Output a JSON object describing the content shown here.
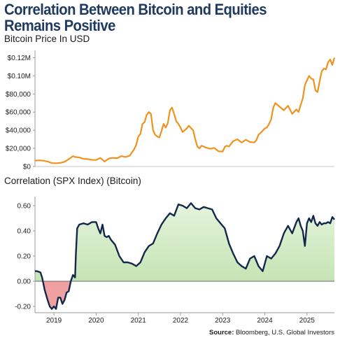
{
  "title": "Correlation Between Bitcoin and Equities Remains Positive",
  "source_label": "Source:",
  "source_text": " Bloomberg, U.S. Global Investors",
  "colors": {
    "bitcoin_line": "#f0921e",
    "correlation_line": "#13294b",
    "positive_fill": "#b9dea5",
    "negative_fill": "#f0a0a0",
    "title": "#1f3a5f"
  },
  "chart_data": [
    {
      "type": "line",
      "title": "Bitcoin Price In USD",
      "xlabel": "",
      "ylabel": "",
      "ylim": [
        0,
        125000
      ],
      "yticks": [
        0,
        20000,
        40000,
        60000,
        80000,
        100000,
        120000
      ],
      "ytick_labels": [
        "$0",
        "$20,000",
        "$40,000",
        "$60,000",
        "$80,000",
        "$0.10M",
        "$0.12M"
      ],
      "xlim": [
        2018.55,
        2025.65
      ],
      "grid": false,
      "series": [
        {
          "x": [
            2018.55,
            2018.65,
            2018.75,
            2018.85,
            2018.95,
            2019.05,
            2019.15,
            2019.25,
            2019.35,
            2019.45,
            2019.5,
            2019.6,
            2019.7,
            2019.8,
            2019.9,
            2020.0,
            2020.1,
            2020.2,
            2020.3,
            2020.4,
            2020.5,
            2020.6,
            2020.7,
            2020.8,
            2020.85,
            2020.9,
            2020.95,
            2021.0,
            2021.05,
            2021.1,
            2021.15,
            2021.2,
            2021.25,
            2021.3,
            2021.35,
            2021.4,
            2021.45,
            2021.5,
            2021.55,
            2021.6,
            2021.65,
            2021.7,
            2021.75,
            2021.8,
            2021.85,
            2021.9,
            2021.95,
            2022.0,
            2022.05,
            2022.1,
            2022.15,
            2022.2,
            2022.3,
            2022.35,
            2022.4,
            2022.45,
            2022.5,
            2022.6,
            2022.7,
            2022.8,
            2022.9,
            2023.0,
            2023.05,
            2023.1,
            2023.15,
            2023.25,
            2023.35,
            2023.45,
            2023.55,
            2023.65,
            2023.75,
            2023.8,
            2023.85,
            2023.9,
            2024.0,
            2024.05,
            2024.1,
            2024.15,
            2024.2,
            2024.25,
            2024.35,
            2024.45,
            2024.55,
            2024.65,
            2024.75,
            2024.8,
            2024.85,
            2024.9,
            2024.95,
            2025.0,
            2025.05,
            2025.1,
            2025.15,
            2025.2,
            2025.25,
            2025.3,
            2025.35,
            2025.4,
            2025.45,
            2025.5,
            2025.55,
            2025.6,
            2025.65
          ],
          "y": [
            6500,
            6800,
            6400,
            5500,
            3800,
            3600,
            3900,
            5200,
            8000,
            11500,
            10500,
            10000,
            8400,
            8200,
            7300,
            7200,
            9500,
            5500,
            8800,
            9500,
            9200,
            11500,
            10500,
            12000,
            15500,
            19000,
            24000,
            33000,
            36000,
            47000,
            49000,
            57000,
            60000,
            58000,
            40000,
            35000,
            33000,
            32000,
            39000,
            47000,
            43000,
            48000,
            62000,
            65000,
            58000,
            50000,
            47000,
            43000,
            38000,
            40000,
            42000,
            45000,
            40000,
            30000,
            22000,
            20000,
            23000,
            21000,
            19500,
            20500,
            16800,
            16500,
            21500,
            23000,
            22000,
            28000,
            30000,
            26500,
            29500,
            27000,
            26500,
            29000,
            35000,
            37000,
            42000,
            43000,
            47000,
            52000,
            65000,
            70000,
            66000,
            62000,
            67000,
            58000,
            63000,
            60000,
            68000,
            75000,
            90000,
            95000,
            100000,
            97000,
            96000,
            84000,
            82000,
            94000,
            105000,
            108000,
            107000,
            115000,
            118000,
            112000,
            120000
          ]
        }
      ]
    },
    {
      "type": "area",
      "title": "Correlation (SPX Index) (Bitcoin)",
      "xlabel": "",
      "ylabel": "",
      "ylim": [
        -0.25,
        0.65
      ],
      "yticks": [
        -0.2,
        0.0,
        0.2,
        0.4,
        0.6
      ],
      "ytick_labels": [
        "-0.20",
        "0.00",
        "0.20",
        "0.40",
        "0.60"
      ],
      "xlim": [
        2018.55,
        2025.65
      ],
      "xticks": [
        2019,
        2020,
        2021,
        2022,
        2023,
        2024,
        2025
      ],
      "xtick_labels": [
        "2019",
        "2020",
        "2021",
        "2022",
        "2023",
        "2024",
        "2025"
      ],
      "grid": false,
      "series": [
        {
          "x": [
            2018.55,
            2018.6,
            2018.68,
            2018.72,
            2018.78,
            2018.85,
            2018.9,
            2018.95,
            2019.0,
            2019.05,
            2019.1,
            2019.15,
            2019.2,
            2019.25,
            2019.3,
            2019.35,
            2019.4,
            2019.45,
            2019.5,
            2019.52,
            2019.55,
            2019.6,
            2019.7,
            2019.8,
            2019.9,
            2020.0,
            2020.05,
            2020.1,
            2020.15,
            2020.2,
            2020.25,
            2020.3,
            2020.35,
            2020.45,
            2020.55,
            2020.65,
            2020.75,
            2020.85,
            2020.95,
            2021.05,
            2021.15,
            2021.25,
            2021.35,
            2021.45,
            2021.55,
            2021.65,
            2021.75,
            2021.85,
            2021.95,
            2022.05,
            2022.15,
            2022.25,
            2022.35,
            2022.45,
            2022.55,
            2022.65,
            2022.75,
            2022.85,
            2022.95,
            2023.05,
            2023.15,
            2023.25,
            2023.35,
            2023.45,
            2023.55,
            2023.65,
            2023.75,
            2023.85,
            2023.95,
            2024.05,
            2024.15,
            2024.25,
            2024.35,
            2024.45,
            2024.55,
            2024.65,
            2024.75,
            2024.8,
            2024.85,
            2024.9,
            2024.95,
            2025.0,
            2025.05,
            2025.1,
            2025.15,
            2025.2,
            2025.25,
            2025.3,
            2025.35,
            2025.4,
            2025.45,
            2025.5,
            2025.55,
            2025.6,
            2025.65
          ],
          "y": [
            0.08,
            0.08,
            0.07,
            0.03,
            -0.07,
            -0.15,
            -0.2,
            -0.22,
            -0.2,
            -0.22,
            -0.13,
            -0.13,
            -0.18,
            -0.15,
            -0.09,
            -0.08,
            0.0,
            0.05,
            0.03,
            0.22,
            0.42,
            0.45,
            0.46,
            0.45,
            0.47,
            0.47,
            0.42,
            0.38,
            0.45,
            0.36,
            0.35,
            0.36,
            0.33,
            0.29,
            0.2,
            0.15,
            0.15,
            0.14,
            0.12,
            0.15,
            0.23,
            0.28,
            0.3,
            0.38,
            0.45,
            0.5,
            0.54,
            0.52,
            0.61,
            0.6,
            0.58,
            0.62,
            0.58,
            0.57,
            0.59,
            0.58,
            0.57,
            0.5,
            0.46,
            0.42,
            0.3,
            0.22,
            0.15,
            0.12,
            0.1,
            0.18,
            0.2,
            0.12,
            0.08,
            0.2,
            0.18,
            0.22,
            0.28,
            0.38,
            0.44,
            0.38,
            0.47,
            0.5,
            0.44,
            0.4,
            0.28,
            0.46,
            0.5,
            0.47,
            0.52,
            0.46,
            0.44,
            0.47,
            0.45,
            0.46,
            0.46,
            0.47,
            0.46,
            0.51,
            0.49
          ]
        }
      ]
    }
  ]
}
